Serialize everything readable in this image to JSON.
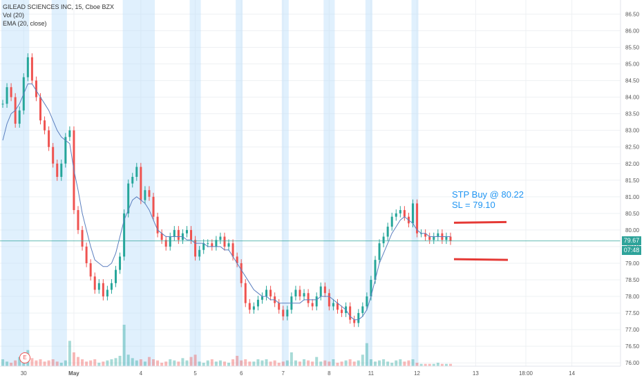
{
  "chart_data": {
    "type": "candlestick",
    "symbol": "GILEAD SCIENCES INC, 15, Cboe BZX",
    "indicators": [
      "Vol (20)",
      "EMA (20, close)"
    ],
    "y_axis": {
      "ylim": [
        75.9,
        86.8
      ],
      "tick_labels": [
        "86.50",
        "86.00",
        "85.50",
        "85.00",
        "84.50",
        "84.00",
        "83.50",
        "83.00",
        "82.50",
        "82.00",
        "81.50",
        "81.00",
        "80.50",
        "80.00",
        "79.50",
        "79.00",
        "78.50",
        "78.00",
        "77.50",
        "77.00",
        "76.50",
        "76.00"
      ],
      "tick_values": [
        86.5,
        86.0,
        85.5,
        85.0,
        84.5,
        84.0,
        83.5,
        83.0,
        82.5,
        82.0,
        81.5,
        81.0,
        80.5,
        80.0,
        79.5,
        79.0,
        78.5,
        78.0,
        77.5,
        77.0,
        76.5,
        76.0
      ]
    },
    "x_axis": {
      "tick_labels": [
        "30",
        "May",
        "4",
        "5",
        "6",
        "7",
        "8",
        "11",
        "12",
        "13",
        "18:00",
        "14"
      ],
      "tick_index": [
        5,
        17,
        33,
        46,
        57,
        67,
        78,
        88,
        99,
        113,
        125,
        136
      ]
    },
    "current_price": "79.67",
    "countdown": "07:48",
    "current_value": 79.67,
    "price_series": [
      83.8,
      84.3,
      84.0,
      83.2,
      83.6,
      84.6,
      85.2,
      84.5,
      84.0,
      83.3,
      83.0,
      82.5,
      82.0,
      81.6,
      82.0,
      82.8,
      83.0,
      80.6,
      80.0,
      79.5,
      79.0,
      78.6,
      78.2,
      78.4,
      78.0,
      78.2,
      78.4,
      78.8,
      79.2,
      80.5,
      81.4,
      81.6,
      81.9,
      80.9,
      81.2,
      81.0,
      80.4,
      79.9,
      79.7,
      79.5,
      79.8,
      80.0,
      79.7,
      79.9,
      80.0,
      79.7,
      79.2,
      79.4,
      79.6,
      79.6,
      79.5,
      79.7,
      79.8,
      79.5,
      79.6,
      79.2,
      79.0,
      78.4,
      77.8,
      77.6,
      77.7,
      77.9,
      78.0,
      78.2,
      78.0,
      77.8,
      77.6,
      77.4,
      77.6,
      78.0,
      78.2,
      78.0,
      78.1,
      77.8,
      77.7,
      78.0,
      78.3,
      78.1,
      77.7,
      77.8,
      77.6,
      77.5,
      77.7,
      77.3,
      77.2,
      77.5,
      77.7,
      78.0,
      78.5,
      79.1,
      79.6,
      79.8,
      80.1,
      80.4,
      80.5,
      80.6,
      80.4,
      80.2,
      80.8,
      79.9,
      79.9,
      79.8,
      79.7,
      79.8,
      79.9,
      79.7,
      79.8,
      79.67
    ],
    "ema_series": [
      82.7,
      83.2,
      83.5,
      83.6,
      83.8,
      84.1,
      84.4,
      84.4,
      84.2,
      84.0,
      83.8,
      83.6,
      83.3,
      83.0,
      82.8,
      82.7,
      82.6,
      81.8,
      81.2,
      80.5,
      80.0,
      79.5,
      79.1,
      79.0,
      78.9,
      78.9,
      79.0,
      79.3,
      79.8,
      80.3,
      80.6,
      80.9,
      81.0,
      80.9,
      80.8,
      80.6,
      80.3,
      80.0,
      79.9,
      79.8,
      79.8,
      79.8,
      79.8,
      79.8,
      79.7,
      79.7,
      79.6,
      79.6,
      79.6,
      79.5,
      79.5,
      79.5,
      79.5,
      79.4,
      79.4,
      79.2,
      79.0,
      78.8,
      78.6,
      78.4,
      78.2,
      78.1,
      78.0,
      78.0,
      77.9,
      77.9,
      77.8,
      77.8,
      77.8,
      77.8,
      77.8,
      77.8,
      77.9,
      77.9,
      77.9,
      77.9,
      78.0,
      78.0,
      78.0,
      77.9,
      77.8,
      77.7,
      77.6,
      77.4,
      77.3,
      77.3,
      77.4,
      77.6,
      78.0,
      78.5,
      79.0,
      79.3,
      79.6,
      79.9,
      80.1,
      80.3,
      80.4,
      80.3,
      80.2,
      80.0,
      79.9,
      79.9,
      79.8,
      79.8,
      79.8,
      79.8,
      79.8,
      79.8
    ],
    "volume_series": [
      6,
      4,
      3,
      5,
      8,
      10,
      14,
      7,
      5,
      6,
      4,
      5,
      6,
      4,
      3,
      5,
      22,
      12,
      8,
      6,
      4,
      5,
      6,
      3,
      4,
      5,
      6,
      7,
      9,
      36,
      10,
      7,
      5,
      6,
      4,
      8,
      6,
      5,
      3,
      4,
      6,
      5,
      4,
      7,
      5,
      8,
      10,
      4,
      3,
      5,
      6,
      4,
      5,
      4,
      3,
      6,
      9,
      5,
      6,
      4,
      4,
      6,
      5,
      6,
      4,
      5,
      3,
      4,
      5,
      12,
      5,
      4,
      6,
      5,
      4,
      8,
      4,
      5,
      4,
      6,
      3,
      4,
      5,
      6,
      4,
      5,
      10,
      20,
      6,
      4,
      5,
      6,
      4,
      3,
      5,
      6,
      4,
      5,
      6,
      3,
      2,
      2,
      2,
      2,
      3,
      2,
      2,
      2
    ],
    "session_highlights": [
      [
        0,
        6
      ],
      [
        12,
        15
      ],
      [
        29,
        36
      ],
      [
        45,
        47
      ],
      [
        56,
        57
      ],
      [
        67,
        68
      ],
      [
        77,
        79
      ],
      [
        87,
        88
      ],
      [
        98,
        99
      ]
    ],
    "annotation": {
      "line1": "STP Buy @ 80.22",
      "line2": "SL = 79.10"
    },
    "levels": {
      "buy": 80.22,
      "stop": 79.1
    },
    "event_marker": "E",
    "colors": {
      "up": "#26a69a",
      "down": "#ef5350",
      "ema": "#5b7fbf",
      "highlight": "#bbdefb",
      "level": "#e53935",
      "annotation": "#2196f3",
      "price_line": "#2ea39a"
    }
  }
}
